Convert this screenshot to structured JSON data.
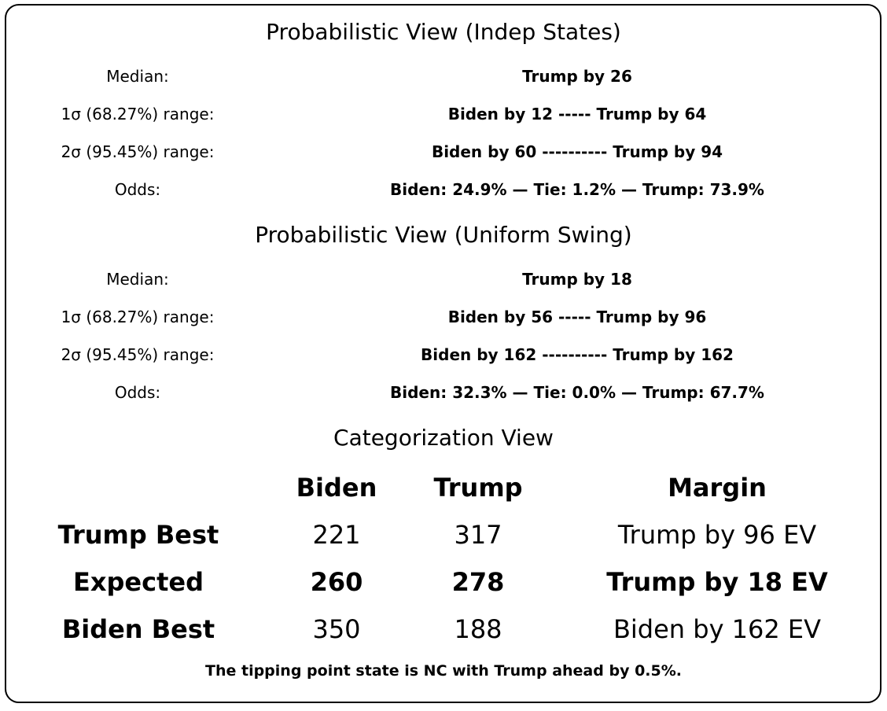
{
  "indep": {
    "title": "Probabilistic View (Indep States)",
    "rows": [
      {
        "label": "Median:",
        "value": "Trump by 26"
      },
      {
        "label": "1σ (68.27%) range:",
        "value": "Biden by 12 ----- Trump by 64"
      },
      {
        "label": "2σ (95.45%) range:",
        "value": "Biden by 60 ---------- Trump by 94"
      },
      {
        "label": "Odds:",
        "value": "Biden: 24.9% — Tie: 1.2% — Trump: 73.9%"
      }
    ]
  },
  "uniform": {
    "title": "Probabilistic View (Uniform Swing)",
    "rows": [
      {
        "label": "Median:",
        "value": "Trump by 18"
      },
      {
        "label": "1σ (68.27%) range:",
        "value": "Biden by 56 ----- Trump by 96"
      },
      {
        "label": "2σ (95.45%) range:",
        "value": "Biden by 162 ---------- Trump by 162"
      },
      {
        "label": "Odds:",
        "value": "Biden: 32.3% — Tie: 0.0% — Trump: 67.7%"
      }
    ]
  },
  "categorization": {
    "title": "Categorization View",
    "headers": {
      "biden": "Biden",
      "trump": "Trump",
      "margin": "Margin"
    },
    "rows": [
      {
        "label": "Trump Best",
        "biden": "221",
        "trump": "317",
        "margin": "Trump by 96 EV"
      },
      {
        "label": "Expected",
        "biden": "260",
        "trump": "278",
        "margin": "Trump by 18 EV"
      },
      {
        "label": "Biden Best",
        "biden": "350",
        "trump": "188",
        "margin": "Biden by 162 EV"
      }
    ]
  },
  "tipping_point": "The tipping point state is NC with Trump ahead by 0.5%."
}
